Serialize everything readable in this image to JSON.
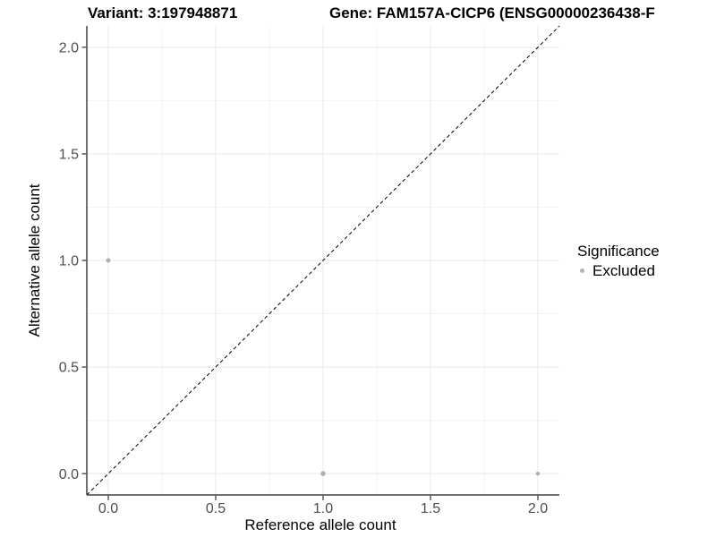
{
  "titles": {
    "variant": "Variant: 3:197948871",
    "gene": "Gene: FAM157A-CICP6 (ENSG00000236438-F"
  },
  "chart_data": {
    "type": "scatter",
    "title_left": "Variant: 3:197948871",
    "title_right": "Gene: FAM157A-CICP6 (ENSG00000236438-F",
    "xlabel": "Reference allele count",
    "ylabel": "Alternative allele count",
    "xlim": [
      -0.1,
      2.1
    ],
    "ylim": [
      -0.1,
      2.1
    ],
    "xticks": {
      "values": [
        0,
        0.5,
        1,
        1.5,
        2
      ],
      "labels": [
        "0.0",
        "0.5",
        "1.0",
        "1.5",
        "2.0"
      ]
    },
    "yticks": {
      "values": [
        0,
        0.5,
        1,
        1.5,
        2
      ],
      "labels": [
        "0.0",
        "0.5",
        "1.0",
        "1.5",
        "2.0"
      ]
    },
    "grid": {
      "major": true,
      "minor": true,
      "minor_x": [
        0.25,
        0.75,
        1.25,
        1.75
      ],
      "minor_y": [
        0.25,
        0.75,
        1.25,
        1.75
      ]
    },
    "points": [
      {
        "x": 0,
        "y": 1,
        "series": "Excluded",
        "r": 2.5
      },
      {
        "x": 1,
        "y": 0,
        "series": "Excluded",
        "r": 2.8
      },
      {
        "x": 2,
        "y": 0,
        "series": "Excluded",
        "r": 2.2
      }
    ],
    "identity_line": {
      "slope": 1,
      "intercept": 0,
      "style": "dashed"
    },
    "legend": {
      "title": "Significance",
      "position": "right",
      "entries": [
        {
          "label": "Excluded",
          "color": "#b3b3b3"
        }
      ]
    }
  },
  "colors": {
    "background": "#ffffff",
    "point": "#aeaeae",
    "axis_line": "#404040",
    "tick_mark": "#333333",
    "tick_text": "#4d4d4d",
    "label_text": "#000000",
    "grid_major": "#e8e8e8",
    "grid_minor": "#f3f3f3",
    "identity_line": "#000000"
  }
}
